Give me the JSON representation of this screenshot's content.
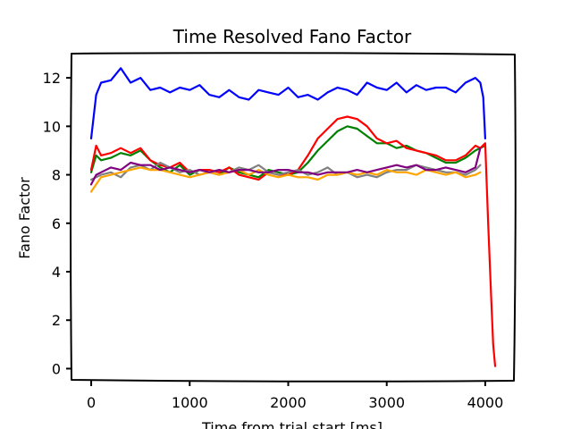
{
  "chart_data": {
    "type": "line",
    "title": "Time Resolved Fano Factor",
    "xlabel": "Time from trial start [ms]",
    "ylabel": "Fano Factor",
    "xlim": [
      -200,
      4300
    ],
    "ylim": [
      -0.5,
      13.0
    ],
    "xticks": [
      0,
      1000,
      2000,
      3000,
      4000
    ],
    "yticks": [
      0,
      2,
      4,
      6,
      8,
      10,
      12
    ],
    "grid": false,
    "legend": "none",
    "series": [
      {
        "color": "#0000ff",
        "x": [
          0,
          50,
          100,
          200,
          300,
          400,
          500,
          600,
          700,
          800,
          900,
          1000,
          1100,
          1200,
          1300,
          1400,
          1500,
          1600,
          1700,
          1800,
          1900,
          2000,
          2100,
          2200,
          2300,
          2400,
          2500,
          2600,
          2700,
          2800,
          2900,
          3000,
          3100,
          3200,
          3300,
          3400,
          3500,
          3600,
          3700,
          3800,
          3900,
          3950,
          3980,
          4000
        ],
        "y": [
          9.5,
          11.3,
          11.8,
          11.9,
          12.4,
          11.8,
          12.0,
          11.5,
          11.6,
          11.4,
          11.6,
          11.5,
          11.7,
          11.3,
          11.2,
          11.5,
          11.2,
          11.1,
          11.5,
          11.4,
          11.3,
          11.6,
          11.2,
          11.3,
          11.1,
          11.4,
          11.6,
          11.5,
          11.3,
          11.8,
          11.6,
          11.5,
          11.8,
          11.4,
          11.7,
          11.5,
          11.6,
          11.6,
          11.4,
          11.8,
          12.0,
          11.8,
          11.2,
          9.5
        ]
      },
      {
        "color": "#008000",
        "x": [
          0,
          50,
          100,
          200,
          300,
          400,
          500,
          600,
          700,
          800,
          900,
          1000,
          1100,
          1200,
          1300,
          1400,
          1500,
          1600,
          1700,
          1800,
          1900,
          2000,
          2100,
          2200,
          2300,
          2400,
          2500,
          2600,
          2700,
          2800,
          2900,
          3000,
          3100,
          3200,
          3300,
          3400,
          3500,
          3600,
          3700,
          3800,
          3900,
          3950,
          4000
        ],
        "y": [
          8.1,
          8.8,
          8.6,
          8.7,
          8.9,
          8.8,
          9.0,
          8.6,
          8.3,
          8.1,
          8.4,
          8.0,
          8.2,
          8.1,
          8.0,
          8.3,
          8.1,
          8.0,
          7.9,
          8.2,
          8.1,
          8.0,
          8.1,
          8.5,
          9.0,
          9.4,
          9.8,
          10.0,
          9.9,
          9.6,
          9.3,
          9.3,
          9.1,
          9.2,
          9.0,
          8.9,
          8.7,
          8.5,
          8.5,
          8.7,
          9.0,
          9.1,
          9.2
        ]
      },
      {
        "color": "#ff0000",
        "x": [
          0,
          50,
          100,
          200,
          300,
          400,
          500,
          600,
          700,
          800,
          900,
          1000,
          1100,
          1200,
          1300,
          1400,
          1500,
          1600,
          1700,
          1800,
          1900,
          2000,
          2100,
          2200,
          2300,
          2400,
          2500,
          2600,
          2700,
          2800,
          2900,
          3000,
          3100,
          3200,
          3300,
          3400,
          3500,
          3600,
          3700,
          3800,
          3900,
          3950,
          4000,
          4030,
          4060,
          4080,
          4100
        ],
        "y": [
          8.2,
          9.2,
          8.8,
          8.9,
          9.1,
          8.9,
          9.1,
          8.6,
          8.4,
          8.3,
          8.5,
          8.1,
          8.2,
          8.2,
          8.1,
          8.3,
          8.0,
          7.9,
          7.8,
          8.1,
          8.0,
          8.0,
          8.2,
          8.8,
          9.5,
          9.9,
          10.3,
          10.4,
          10.3,
          10.0,
          9.5,
          9.3,
          9.4,
          9.1,
          9.0,
          8.9,
          8.8,
          8.6,
          8.6,
          8.8,
          9.2,
          9.1,
          9.3,
          6.0,
          3.0,
          1.0,
          0.1
        ]
      },
      {
        "color": "#808080",
        "x": [
          0,
          100,
          200,
          300,
          400,
          500,
          600,
          700,
          800,
          900,
          1000,
          1100,
          1200,
          1300,
          1400,
          1500,
          1600,
          1700,
          1800,
          1900,
          2000,
          2100,
          2200,
          2300,
          2400,
          2500,
          2600,
          2700,
          2800,
          2900,
          3000,
          3100,
          3200,
          3300,
          3400,
          3500,
          3600,
          3700,
          3800,
          3900,
          3950
        ],
        "y": [
          7.8,
          8.0,
          8.1,
          7.9,
          8.3,
          8.4,
          8.2,
          8.5,
          8.3,
          8.1,
          8.2,
          8.0,
          8.1,
          8.2,
          8.1,
          8.3,
          8.2,
          8.4,
          8.1,
          8.0,
          8.1,
          8.2,
          8.0,
          8.1,
          8.3,
          8.0,
          8.1,
          7.9,
          8.0,
          7.9,
          8.1,
          8.2,
          8.2,
          8.4,
          8.3,
          8.2,
          8.1,
          8.1,
          8.0,
          8.2,
          8.4
        ]
      },
      {
        "color": "#ffa500",
        "x": [
          0,
          100,
          200,
          300,
          400,
          500,
          600,
          700,
          800,
          900,
          1000,
          1100,
          1200,
          1300,
          1400,
          1500,
          1600,
          1700,
          1800,
          1900,
          2000,
          2100,
          2200,
          2300,
          2400,
          2500,
          2600,
          2700,
          2800,
          2900,
          3000,
          3100,
          3200,
          3300,
          3400,
          3500,
          3600,
          3700,
          3800,
          3900,
          3950
        ],
        "y": [
          7.3,
          7.9,
          8.0,
          8.1,
          8.2,
          8.3,
          8.2,
          8.2,
          8.1,
          8.0,
          7.9,
          8.0,
          8.1,
          8.0,
          8.1,
          8.2,
          8.0,
          8.2,
          8.0,
          7.9,
          8.0,
          7.9,
          7.9,
          7.8,
          8.0,
          8.0,
          8.1,
          8.0,
          8.1,
          8.0,
          8.2,
          8.1,
          8.1,
          8.0,
          8.2,
          8.1,
          8.0,
          8.1,
          7.9,
          8.0,
          8.1
        ]
      },
      {
        "color": "#800080",
        "x": [
          0,
          50,
          100,
          200,
          300,
          400,
          500,
          600,
          700,
          800,
          900,
          1000,
          1100,
          1200,
          1300,
          1400,
          1500,
          1600,
          1700,
          1800,
          1900,
          2000,
          2100,
          2200,
          2300,
          2400,
          2500,
          2600,
          2700,
          2800,
          2900,
          3000,
          3100,
          3200,
          3300,
          3400,
          3500,
          3600,
          3700,
          3800,
          3900,
          3950
        ],
        "y": [
          7.6,
          8.0,
          8.1,
          8.3,
          8.2,
          8.5,
          8.4,
          8.4,
          8.2,
          8.3,
          8.2,
          8.1,
          8.2,
          8.1,
          8.2,
          8.1,
          8.2,
          8.2,
          8.1,
          8.1,
          8.2,
          8.2,
          8.1,
          8.1,
          8.0,
          8.1,
          8.1,
          8.1,
          8.2,
          8.1,
          8.2,
          8.3,
          8.4,
          8.3,
          8.4,
          8.2,
          8.2,
          8.3,
          8.2,
          8.1,
          8.3,
          9.1
        ]
      }
    ]
  }
}
